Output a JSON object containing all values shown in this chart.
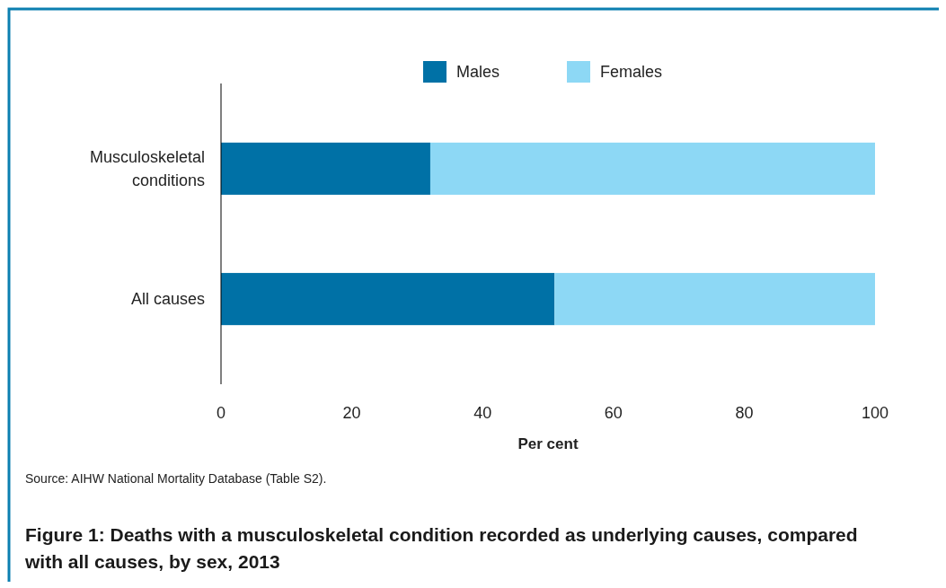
{
  "chart_data": {
    "type": "bar",
    "orientation": "horizontal",
    "stacked": true,
    "title": "Figure 1: Deaths with a musculoskeletal condition recorded as underlying causes, compared with all causes, by sex, 2013",
    "xlabel": "Per cent",
    "categories": [
      "Musculoskeletal conditions",
      "All causes"
    ],
    "series": [
      {
        "name": "Males",
        "color": "#0071a6",
        "values": [
          32,
          51
        ]
      },
      {
        "name": "Females",
        "color": "#8dd8f5",
        "values": [
          68,
          49
        ]
      }
    ],
    "xlim": [
      0,
      100
    ],
    "xticks": [
      0,
      20,
      40,
      60,
      80,
      100
    ],
    "grid": false,
    "legend": "top",
    "annotations": [
      "Source: AIHW National Mortality Database (Table S2)."
    ]
  }
}
